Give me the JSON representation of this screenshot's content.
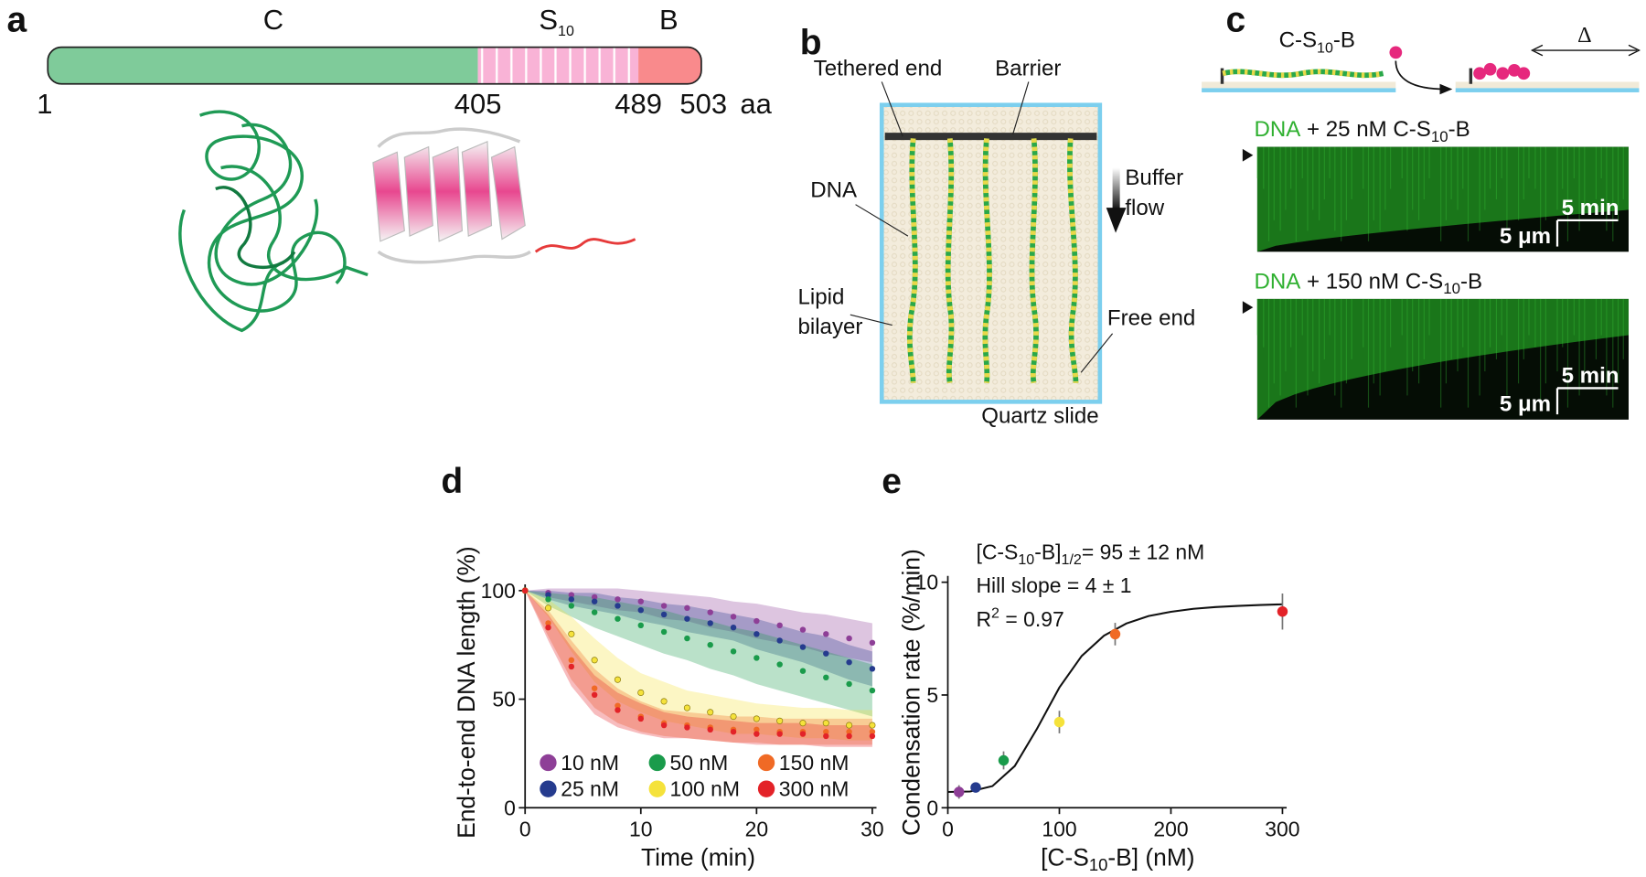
{
  "panel_labels": [
    "a",
    "b",
    "c",
    "d",
    "e"
  ],
  "panel_a": {
    "domains": [
      "C",
      "S",
      "10",
      "B"
    ],
    "positions": [
      1,
      405,
      489,
      503
    ],
    "unit": "aa"
  },
  "panel_b": {
    "labels": [
      "Tethered end",
      "Barrier",
      "DNA",
      "Buffer",
      "flow",
      "Lipid",
      "bilayer",
      "Free end",
      "Quartz slide"
    ]
  },
  "panel_c": {
    "protein": [
      "C-S",
      "10",
      "-B"
    ],
    "delta": "Δ",
    "kymographs": [
      {
        "title": [
          "DNA",
          " + 25 nM C-S",
          "10",
          "-B"
        ],
        "time_scale": "5 min",
        "length_scale": "5 μm"
      },
      {
        "title": [
          "DNA",
          " + 150 nM C-S",
          "10",
          "-B"
        ],
        "time_scale": "5 min",
        "length_scale": "5 μm"
      }
    ]
  },
  "chart_data": [
    {
      "type": "line",
      "x_label": "Time (min)",
      "y_label": "End-to-end DNA length (%)",
      "xlim": [
        0,
        30
      ],
      "xticks": [
        0,
        10,
        20,
        30
      ],
      "ylim": [
        0,
        100
      ],
      "yticks": [
        0,
        50,
        100
      ],
      "x": [
        0,
        2,
        4,
        6,
        8,
        10,
        12,
        14,
        16,
        18,
        20,
        22,
        24,
        26,
        28,
        30
      ],
      "series": [
        {
          "name": "10 nM",
          "color": "#8e3f97",
          "values": [
            100,
            99,
            98,
            97,
            96,
            95,
            93,
            92,
            90,
            88,
            86,
            84,
            82,
            80,
            78,
            76
          ],
          "errors": [
            0,
            2,
            3,
            4,
            5,
            5,
            6,
            6,
            7,
            7,
            8,
            8,
            8,
            9,
            9,
            9
          ]
        },
        {
          "name": "25 nM",
          "color": "#253b8e",
          "values": [
            100,
            98,
            96,
            95,
            93,
            91,
            89,
            87,
            85,
            83,
            80,
            77,
            74,
            71,
            67,
            64
          ],
          "errors": [
            0,
            2,
            3,
            4,
            4,
            5,
            5,
            6,
            6,
            6,
            7,
            7,
            7,
            8,
            8,
            8
          ]
        },
        {
          "name": "50 nM",
          "color": "#1a9b4b",
          "values": [
            100,
            96,
            93,
            90,
            87,
            84,
            81,
            78,
            75,
            72,
            69,
            66,
            63,
            60,
            57,
            54
          ],
          "errors": [
            0,
            3,
            5,
            7,
            8,
            9,
            10,
            10,
            11,
            11,
            12,
            12,
            12,
            12,
            12,
            12
          ]
        },
        {
          "name": "100 nM",
          "color": "#f5e23b",
          "values": [
            100,
            92,
            80,
            68,
            59,
            53,
            49,
            46,
            44,
            42,
            41,
            40,
            39,
            39,
            38,
            38
          ],
          "errors": [
            0,
            4,
            8,
            10,
            10,
            9,
            9,
            8,
            8,
            8,
            7,
            7,
            7,
            7,
            7,
            7
          ]
        },
        {
          "name": "150 nM",
          "color": "#f06a25",
          "values": [
            100,
            85,
            68,
            55,
            47,
            42,
            39,
            38,
            37,
            36,
            36,
            35,
            35,
            35,
            35,
            35
          ],
          "errors": [
            0,
            6,
            9,
            9,
            8,
            7,
            6,
            6,
            6,
            6,
            6,
            6,
            6,
            6,
            6,
            6
          ]
        },
        {
          "name": "300 nM",
          "color": "#e32228",
          "values": [
            100,
            83,
            65,
            52,
            45,
            41,
            38,
            37,
            36,
            35,
            34,
            34,
            34,
            33,
            33,
            33
          ],
          "errors": [
            0,
            6,
            9,
            9,
            8,
            7,
            6,
            5,
            5,
            5,
            5,
            5,
            5,
            5,
            5,
            5
          ]
        }
      ]
    },
    {
      "type": "scatter",
      "x_label": [
        "[C-S",
        "10",
        "-B] (nM)"
      ],
      "y_label": "Condensation rate (%/min)",
      "annotations": [
        [
          "[C-S",
          "10",
          "-B]",
          "1/2",
          "= 95 ± 12 nM"
        ],
        [
          "Hill slope = 4 ± 1"
        ],
        [
          "R",
          "2",
          " = 0.97"
        ]
      ],
      "xlim": [
        0,
        300
      ],
      "xticks": [
        0,
        100,
        200,
        300
      ],
      "ylim": [
        0,
        10
      ],
      "yticks": [
        0,
        5,
        10
      ],
      "x": [
        10,
        25,
        50,
        100,
        150,
        300
      ],
      "values": [
        0.7,
        0.9,
        2.1,
        3.8,
        7.7,
        8.7
      ],
      "errors": [
        0.3,
        0.2,
        0.4,
        0.5,
        0.5,
        0.8
      ],
      "colors": [
        "#8e3f97",
        "#253b8e",
        "#1a9b4b",
        "#f5e23b",
        "#f06a25",
        "#e32228"
      ],
      "fit": {
        "x": [
          0,
          20,
          40,
          60,
          80,
          100,
          120,
          140,
          160,
          180,
          200,
          220,
          240,
          260,
          280,
          300
        ],
        "values": [
          0.7,
          0.72,
          0.96,
          1.85,
          3.51,
          5.33,
          6.73,
          7.63,
          8.17,
          8.5,
          8.69,
          8.82,
          8.9,
          8.95,
          8.99,
          9.02
        ]
      }
    }
  ]
}
